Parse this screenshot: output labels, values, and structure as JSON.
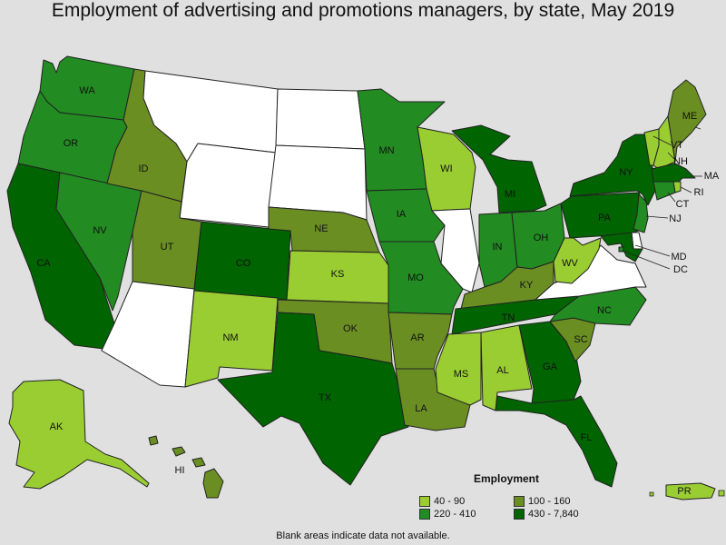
{
  "title": "Employment of advertising and promotions managers, by state, May 2019",
  "colors": {
    "c1": "#9ACD32",
    "c2": "#6B8E23",
    "c3": "#228B22",
    "c4": "#006400",
    "none": "#ffffff"
  },
  "legend": {
    "title": "Employment",
    "items": [
      {
        "label": "40 - 90",
        "class": "c1"
      },
      {
        "label": "100 - 160",
        "class": "c2"
      },
      {
        "label": "220 - 410",
        "class": "c3"
      },
      {
        "label": "430 - 7,840",
        "class": "c4"
      }
    ]
  },
  "note": "Blank areas indicate data not available.",
  "states": {
    "WA": {
      "label": "WA",
      "class": "c3"
    },
    "OR": {
      "label": "OR",
      "class": "c3"
    },
    "CA": {
      "label": "CA",
      "class": "c4"
    },
    "NV": {
      "label": "NV",
      "class": "c3"
    },
    "ID": {
      "label": "ID",
      "class": "c2"
    },
    "MT": {
      "label": "",
      "class": "none"
    },
    "WY": {
      "label": "",
      "class": "none"
    },
    "UT": {
      "label": "UT",
      "class": "c2"
    },
    "AZ": {
      "label": "",
      "class": "none"
    },
    "CO": {
      "label": "CO",
      "class": "c4"
    },
    "NM": {
      "label": "NM",
      "class": "c1"
    },
    "ND": {
      "label": "",
      "class": "none"
    },
    "SD": {
      "label": "",
      "class": "none"
    },
    "NE": {
      "label": "NE",
      "class": "c2"
    },
    "KS": {
      "label": "KS",
      "class": "c1"
    },
    "OK": {
      "label": "OK",
      "class": "c2"
    },
    "TX": {
      "label": "TX",
      "class": "c4"
    },
    "MN": {
      "label": "MN",
      "class": "c3"
    },
    "IA": {
      "label": "IA",
      "class": "c3"
    },
    "MO": {
      "label": "MO",
      "class": "c3"
    },
    "AR": {
      "label": "AR",
      "class": "c2"
    },
    "LA": {
      "label": "LA",
      "class": "c2"
    },
    "WI": {
      "label": "WI",
      "class": "c1"
    },
    "IL": {
      "label": "",
      "class": "none"
    },
    "MI": {
      "label": "MI",
      "class": "c4"
    },
    "IN": {
      "label": "IN",
      "class": "c3"
    },
    "OH": {
      "label": "OH",
      "class": "c3"
    },
    "KY": {
      "label": "KY",
      "class": "c2"
    },
    "TN": {
      "label": "TN",
      "class": "c4"
    },
    "MS": {
      "label": "MS",
      "class": "c1"
    },
    "AL": {
      "label": "AL",
      "class": "c1"
    },
    "GA": {
      "label": "GA",
      "class": "c4"
    },
    "FL": {
      "label": "FL",
      "class": "c4"
    },
    "SC": {
      "label": "SC",
      "class": "c2"
    },
    "NC": {
      "label": "NC",
      "class": "c3"
    },
    "VA": {
      "label": "",
      "class": "none"
    },
    "WV": {
      "label": "WV",
      "class": "c1"
    },
    "PA": {
      "label": "PA",
      "class": "c4"
    },
    "NY": {
      "label": "NY",
      "class": "c4"
    },
    "VT": {
      "label": "VT",
      "class": "c1"
    },
    "NH": {
      "label": "NH",
      "class": "c1"
    },
    "ME": {
      "label": "ME",
      "class": "c2"
    },
    "MA": {
      "label": "MA",
      "class": "c4"
    },
    "RI": {
      "label": "RI",
      "class": "c1"
    },
    "CT": {
      "label": "CT",
      "class": "c3"
    },
    "NJ": {
      "label": "NJ",
      "class": "c3"
    },
    "DE": {
      "label": "",
      "class": "none"
    },
    "MD": {
      "label": "MD",
      "class": "c4"
    },
    "DC": {
      "label": "DC",
      "class": "c3"
    },
    "AK": {
      "label": "AK",
      "class": "c1"
    },
    "HI": {
      "label": "HI",
      "class": "c2"
    },
    "PR": {
      "label": "PR",
      "class": "c1"
    }
  }
}
